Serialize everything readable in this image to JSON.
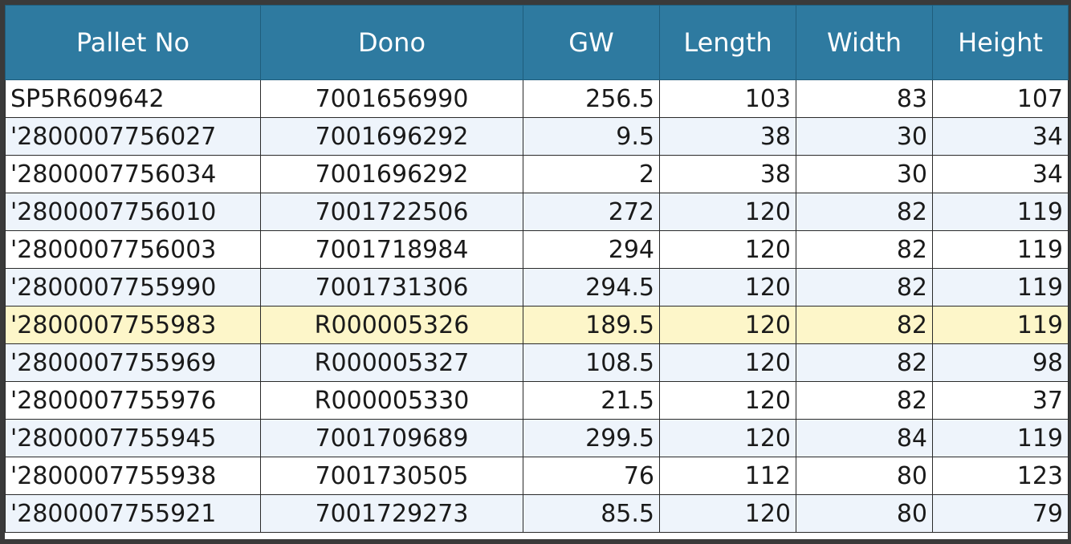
{
  "table": {
    "headers": [
      "Pallet No",
      "Dono",
      "GW",
      "Length",
      "Width",
      "Height"
    ],
    "highlight_color": "#fdf6c9",
    "header_color": "#2e7aa0",
    "rows": [
      {
        "pallet": "SP5R609642",
        "dono": "7001656990",
        "gw": "256.5",
        "length": "103",
        "width": "83",
        "height": "107"
      },
      {
        "pallet": "'2800007756027",
        "dono": "7001696292",
        "gw": "9.5",
        "length": "38",
        "width": "30",
        "height": "34"
      },
      {
        "pallet": "'2800007756034",
        "dono": "7001696292",
        "gw": "2",
        "length": "38",
        "width": "30",
        "height": "34"
      },
      {
        "pallet": "'2800007756010",
        "dono": "7001722506",
        "gw": "272",
        "length": "120",
        "width": "82",
        "height": "119"
      },
      {
        "pallet": "'2800007756003",
        "dono": "7001718984",
        "gw": "294",
        "length": "120",
        "width": "82",
        "height": "119"
      },
      {
        "pallet": "'2800007755990",
        "dono": "7001731306",
        "gw": "294.5",
        "length": "120",
        "width": "82",
        "height": "119"
      },
      {
        "pallet": "'2800007755983",
        "dono": "R000005326",
        "gw": "189.5",
        "length": "120",
        "width": "82",
        "height": "119",
        "highlighted": true
      },
      {
        "pallet": "'2800007755969",
        "dono": "R000005327",
        "gw": "108.5",
        "length": "120",
        "width": "82",
        "height": "98"
      },
      {
        "pallet": "'2800007755976",
        "dono": "R000005330",
        "gw": "21.5",
        "length": "120",
        "width": "82",
        "height": "37"
      },
      {
        "pallet": "'2800007755945",
        "dono": "7001709689",
        "gw": "299.5",
        "length": "120",
        "width": "84",
        "height": "119"
      },
      {
        "pallet": "'2800007755938",
        "dono": "7001730505",
        "gw": "76",
        "length": "112",
        "width": "80",
        "height": "123"
      },
      {
        "pallet": "'2800007755921",
        "dono": "7001729273",
        "gw": "85.5",
        "length": "120",
        "width": "80",
        "height": "79"
      }
    ]
  }
}
